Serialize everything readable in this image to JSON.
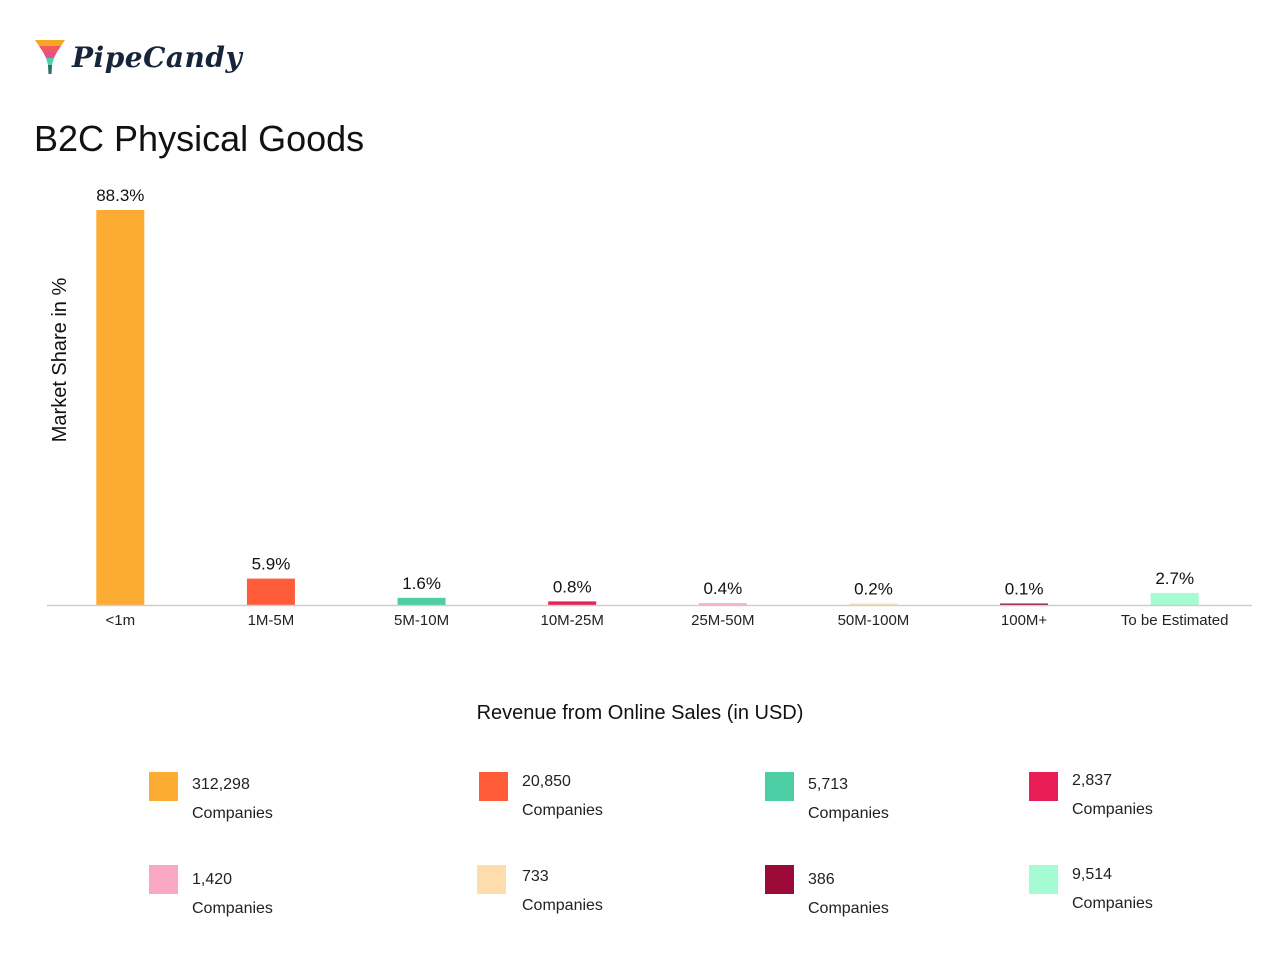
{
  "logo": {
    "text": "PipeCandy",
    "colors": [
      "#f6a623",
      "#f05a5b",
      "#e84f8d",
      "#4ecfa7",
      "#2c6e6a"
    ]
  },
  "chart_data": {
    "type": "bar",
    "title": "B2C Physical Goods",
    "xlabel": "Revenue from Online Sales (in USD)",
    "ylabel": "Market Share in %",
    "categories": [
      "<1m",
      "1M-5M",
      "5M-10M",
      "10M-25M",
      "25M-50M",
      "50M-100M",
      "100M+",
      "To be Estimated"
    ],
    "values": [
      88.3,
      5.9,
      1.6,
      0.8,
      0.4,
      0.2,
      0.1,
      2.7
    ],
    "value_labels": [
      "88.3%",
      "5.9%",
      "1.6%",
      "0.8%",
      "0.4%",
      "0.2%",
      "0.1%",
      "2.7%"
    ],
    "colors": [
      "#fdac33",
      "#ff5c3a",
      "#4ccda4",
      "#e91e57",
      "#f9a7c3",
      "#ffdcae",
      "#9b0a39",
      "#a6fcd2"
    ],
    "ylim": [
      0,
      88.3
    ],
    "grid": false,
    "legend": "bottom"
  },
  "legend": {
    "items": [
      {
        "count": "312,298",
        "unit": "Companies",
        "color": "#fdac33"
      },
      {
        "count": "20,850",
        "unit": "Companies",
        "color": "#ff5c3a"
      },
      {
        "count": "5,713",
        "unit": "Companies",
        "color": "#4ccda4"
      },
      {
        "count": "2,837",
        "unit": "Companies",
        "color": "#e91e57"
      },
      {
        "count": "1,420",
        "unit": "Companies",
        "color": "#f9a7c3"
      },
      {
        "count": "733",
        "unit": "Companies",
        "color": "#ffdcae"
      },
      {
        "count": "386",
        "unit": "Companies",
        "color": "#9b0a39"
      },
      {
        "count": "9,514",
        "unit": "Companies",
        "color": "#a6fcd2"
      }
    ]
  }
}
